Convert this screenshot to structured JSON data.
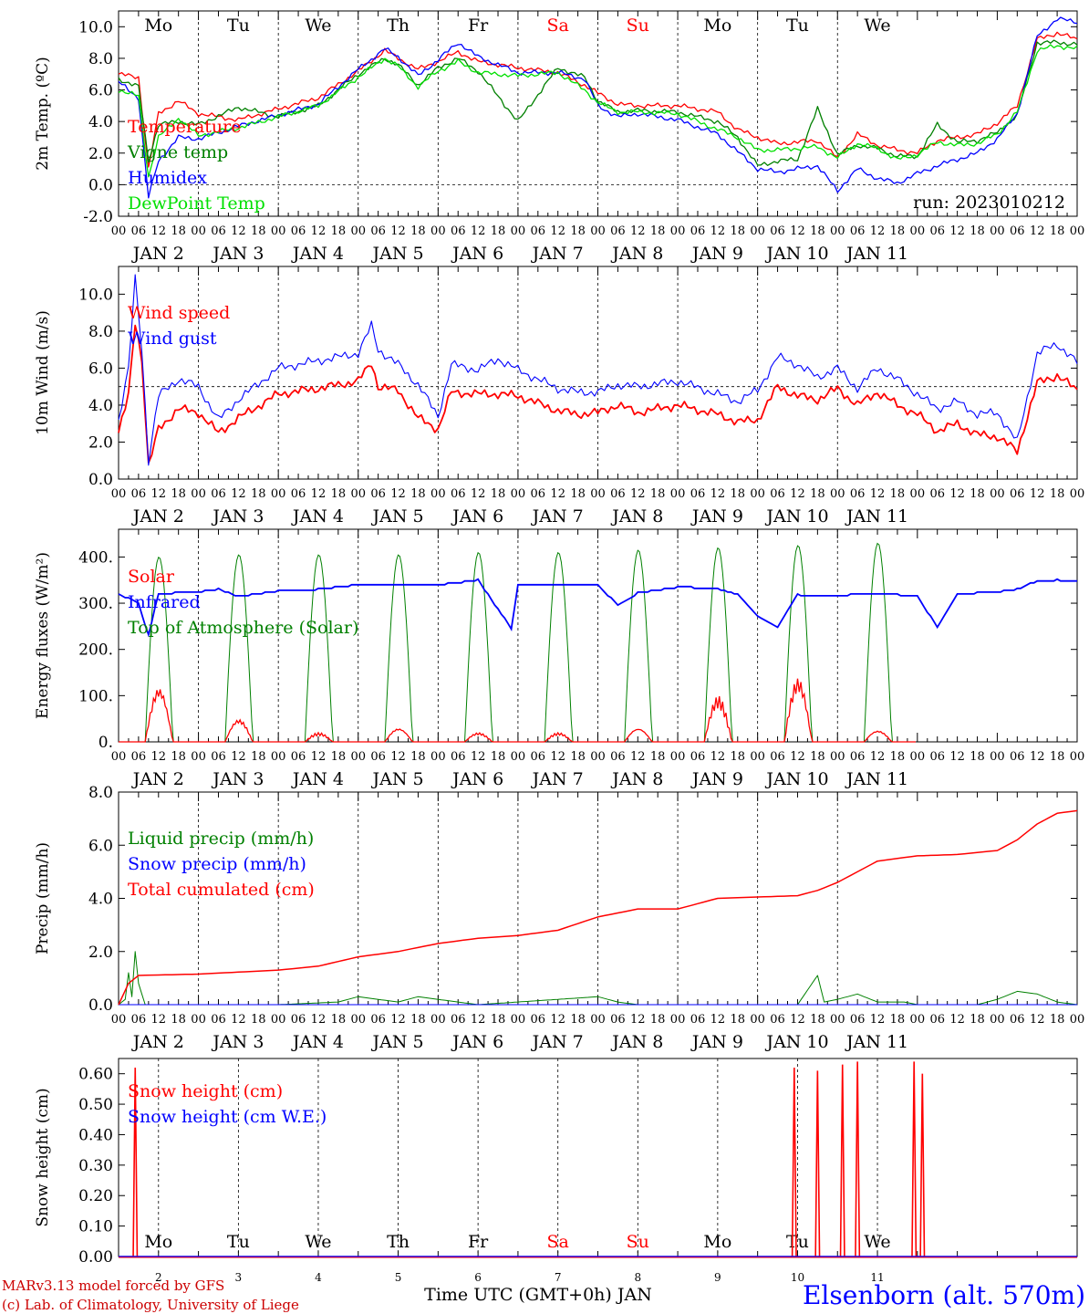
{
  "meta": {
    "run_label": "run: 2023010212",
    "footer_model": "MARv3.13 model forced by GFS",
    "footer_lab": "(c) Lab. of Climatology, University of Liege",
    "time_axis_label": "Time UTC (GMT+0h) JAN",
    "station": "Elsenborn (alt. 570m)"
  },
  "colors": {
    "red": "#ff0000",
    "green": "#008000",
    "blue": "#0000ff",
    "lightgreen": "#00e000",
    "weekend": "#ff0000",
    "station": "#0000ff",
    "footer": "#cc0000"
  },
  "days": [
    {
      "abbr": "Mo",
      "date": "JAN  2",
      "num": "2",
      "weekend": false
    },
    {
      "abbr": "Tu",
      "date": "JAN  3",
      "num": "3",
      "weekend": false
    },
    {
      "abbr": "We",
      "date": "JAN  4",
      "num": "4",
      "weekend": false
    },
    {
      "abbr": "Th",
      "date": "JAN  5",
      "num": "5",
      "weekend": false
    },
    {
      "abbr": "Fr",
      "date": "JAN  6",
      "num": "6",
      "weekend": false
    },
    {
      "abbr": "Sa",
      "date": "JAN  7",
      "num": "7",
      "weekend": true
    },
    {
      "abbr": "Su",
      "date": "JAN  8",
      "num": "8",
      "weekend": true
    },
    {
      "abbr": "Mo",
      "date": "JAN  9",
      "num": "9",
      "weekend": false
    },
    {
      "abbr": "Tu",
      "date": "JAN 10",
      "num": "10",
      "weekend": false
    },
    {
      "abbr": "We",
      "date": "JAN 11",
      "num": "11",
      "weekend": false
    }
  ],
  "hour_ticks": [
    "00",
    "06",
    "12",
    "18"
  ],
  "chart_data": [
    {
      "type": "line",
      "ylabel": "2m Temp. (ºC)",
      "ylim": [
        -2,
        11
      ],
      "yticks": [
        "-2.0",
        "0.0",
        "2.0",
        "4.0",
        "6.0",
        "8.0",
        "10.0"
      ],
      "ytick_values": [
        -2,
        0,
        2,
        4,
        6,
        8,
        10
      ],
      "reference_line": 0,
      "x_unit": "hours since JAN 2 00 UTC",
      "series": [
        {
          "name": "Temperature",
          "color": "#ff0000",
          "x": [
            0,
            6,
            9,
            12,
            18,
            24,
            36,
            48,
            60,
            72,
            80,
            84,
            90,
            96,
            102,
            108,
            120,
            132,
            140,
            144,
            150,
            156,
            168,
            180,
            186,
            192,
            198,
            204,
            210,
            216,
            222,
            228,
            234,
            240,
            246,
            252,
            258,
            264,
            270,
            276,
            282,
            288
          ],
          "y": [
            7.0,
            6.8,
            1.0,
            4.5,
            5.3,
            4.5,
            4.1,
            4.8,
            5.5,
            7.2,
            8.5,
            8.0,
            7.3,
            7.8,
            8.4,
            7.8,
            7.4,
            7.1,
            6.3,
            5.8,
            5.1,
            5.0,
            5.0,
            4.6,
            3.5,
            3.0,
            2.6,
            2.7,
            2.8,
            1.7,
            3.2,
            2.5,
            2.2,
            2.0,
            2.8,
            3.0,
            3.2,
            3.9,
            5.0,
            9.2,
            9.6,
            9.2
          ]
        },
        {
          "name": "Vigne temp",
          "color": "#008000",
          "x": [
            0,
            6,
            9,
            12,
            18,
            24,
            36,
            48,
            60,
            72,
            80,
            84,
            90,
            96,
            102,
            108,
            120,
            132,
            140,
            144,
            150,
            156,
            168,
            180,
            186,
            192,
            198,
            204,
            210,
            216,
            222,
            228,
            234,
            240,
            246,
            252,
            258,
            264,
            270,
            276,
            282,
            288
          ],
          "y": [
            6.7,
            6.2,
            1.5,
            3.8,
            4.0,
            3.8,
            4.9,
            4.3,
            5.0,
            7.0,
            8.0,
            7.6,
            6.3,
            7.4,
            8.0,
            7.2,
            4.0,
            7.4,
            6.8,
            5.3,
            4.6,
            4.7,
            4.6,
            4.0,
            3.0,
            1.2,
            1.5,
            1.6,
            4.8,
            1.9,
            2.5,
            2.3,
            1.8,
            1.8,
            3.8,
            2.7,
            2.8,
            3.3,
            4.4,
            9.0,
            9.0,
            8.9
          ]
        },
        {
          "name": "Humidex",
          "color": "#0000ff",
          "x": [
            0,
            6,
            9,
            12,
            18,
            24,
            36,
            48,
            60,
            72,
            80,
            84,
            90,
            96,
            102,
            108,
            120,
            132,
            140,
            144,
            150,
            156,
            168,
            180,
            186,
            192,
            198,
            204,
            210,
            216,
            222,
            228,
            234,
            240,
            246,
            252,
            258,
            264,
            270,
            276,
            282,
            288
          ],
          "y": [
            6.5,
            5.5,
            -0.8,
            1.5,
            3.0,
            2.9,
            3.7,
            4.4,
            5.1,
            7.3,
            8.6,
            8.1,
            6.9,
            7.9,
            9.0,
            8.1,
            7.1,
            7.1,
            6.7,
            5.0,
            4.3,
            4.5,
            4.1,
            3.2,
            2.1,
            1.0,
            0.8,
            1.0,
            1.2,
            -0.4,
            1.0,
            0.4,
            0.1,
            0.7,
            1.2,
            1.6,
            2.0,
            2.9,
            4.5,
            9.4,
            10.5,
            10.3
          ]
        },
        {
          "name": "DewPoint Temp",
          "color": "#00e000",
          "x": [
            0,
            6,
            9,
            12,
            18,
            24,
            36,
            48,
            60,
            72,
            80,
            84,
            90,
            96,
            102,
            108,
            120,
            132,
            140,
            144,
            150,
            156,
            168,
            180,
            186,
            192,
            198,
            204,
            210,
            216,
            222,
            228,
            234,
            240,
            246,
            252,
            258,
            264,
            270,
            276,
            282,
            288
          ],
          "y": [
            6.0,
            5.6,
            0.5,
            3.0,
            4.2,
            3.1,
            3.6,
            4.3,
            5.0,
            6.8,
            8.0,
            7.5,
            6.2,
            7.2,
            7.8,
            7.1,
            6.9,
            7.1,
            6.0,
            5.2,
            4.6,
            4.6,
            4.5,
            3.5,
            3.0,
            2.2,
            2.2,
            2.3,
            2.4,
            1.7,
            2.6,
            2.3,
            1.6,
            1.9,
            2.7,
            2.5,
            2.6,
            3.2,
            4.6,
            8.5,
            8.8,
            8.6
          ]
        }
      ]
    },
    {
      "type": "line",
      "ylabel": "10m Wind (m/s)",
      "ylim": [
        0,
        11.5
      ],
      "yticks": [
        "0.0",
        "2.0",
        "4.0",
        "6.0",
        "8.0",
        "10.0"
      ],
      "ytick_values": [
        0,
        2,
        4,
        6,
        8,
        10
      ],
      "reference_line": 5,
      "x_unit": "hours since JAN 2 00 UTC",
      "series": [
        {
          "name": "Wind speed",
          "color": "#ff0000",
          "x": [
            0,
            3,
            5,
            7,
            9,
            12,
            18,
            24,
            30,
            36,
            48,
            60,
            72,
            76,
            78,
            84,
            90,
            96,
            100,
            108,
            114,
            120,
            132,
            138,
            144,
            150,
            156,
            168,
            180,
            186,
            192,
            198,
            204,
            210,
            216,
            222,
            228,
            234,
            240,
            246,
            252,
            258,
            264,
            270,
            276,
            282,
            288
          ],
          "y": [
            2.5,
            4.5,
            8.5,
            6.5,
            0.7,
            2.7,
            3.8,
            3.6,
            2.5,
            3.3,
            4.6,
            4.9,
            5.3,
            6.3,
            5.0,
            4.8,
            3.3,
            2.7,
            4.7,
            4.6,
            4.6,
            4.5,
            3.7,
            3.5,
            3.6,
            4.0,
            3.6,
            4.0,
            3.5,
            3.1,
            3.2,
            5.0,
            4.5,
            4.3,
            4.9,
            4.0,
            4.7,
            4.0,
            3.5,
            2.6,
            3.0,
            2.4,
            2.3,
            1.5,
            5.2,
            5.6,
            4.8
          ]
        },
        {
          "name": "Wind gust",
          "color": "#0000ff",
          "x": [
            0,
            3,
            5,
            7,
            9,
            12,
            18,
            24,
            30,
            36,
            48,
            60,
            72,
            76,
            78,
            84,
            90,
            96,
            100,
            108,
            114,
            120,
            132,
            138,
            144,
            150,
            156,
            168,
            180,
            186,
            192,
            198,
            204,
            210,
            216,
            222,
            228,
            234,
            240,
            246,
            252,
            258,
            264,
            270,
            276,
            282,
            288
          ],
          "y": [
            3.2,
            6.0,
            10.8,
            7.0,
            1.0,
            4.5,
            5.4,
            5.0,
            3.2,
            4.3,
            6.0,
            6.4,
            6.8,
            8.3,
            7.0,
            6.2,
            5.1,
            3.4,
            6.2,
            5.9,
            6.5,
            5.9,
            4.9,
            4.7,
            4.7,
            5.1,
            5.0,
            5.3,
            4.6,
            4.2,
            4.8,
            6.6,
            6.2,
            5.5,
            6.0,
            4.9,
            6.0,
            5.4,
            4.6,
            3.8,
            4.2,
            3.5,
            3.6,
            2.0,
            6.8,
            7.3,
            6.3
          ]
        }
      ]
    },
    {
      "type": "line",
      "ylabel": "Energy fluxes (W/m²)",
      "ylim": [
        0,
        460
      ],
      "yticks": [
        "0.",
        "100.",
        "200.",
        "300.",
        "400."
      ],
      "ytick_values": [
        0,
        100,
        200,
        300,
        400
      ],
      "x_unit": "hours since JAN 2 00 UTC",
      "daylight_hours": [
        8.0,
        16.3
      ],
      "series": [
        {
          "name": "Solar",
          "color": "#ff0000",
          "daily_peaks": [
            120,
            50,
            20,
            30,
            20,
            20,
            30,
            100,
            140,
            25
          ]
        },
        {
          "name": "Infrared",
          "color": "#0000ff",
          "x": [
            0,
            6,
            9,
            12,
            24,
            30,
            36,
            48,
            60,
            72,
            84,
            96,
            108,
            118,
            120,
            124,
            126,
            132,
            144,
            150,
            156,
            168,
            180,
            186,
            192,
            198,
            204,
            210,
            216,
            222,
            228,
            234,
            240,
            246,
            252,
            258,
            264,
            270,
            276,
            282,
            288
          ],
          "y": [
            320,
            300,
            230,
            320,
            325,
            330,
            315,
            326,
            330,
            340,
            338,
            340,
            350,
            245,
            340,
            340,
            338,
            340,
            340,
            295,
            322,
            335,
            332,
            318,
            270,
            248,
            318,
            315,
            315,
            320,
            320,
            318,
            315,
            248,
            320,
            322,
            325,
            330,
            348,
            350,
            348
          ]
        },
        {
          "name": "Top of Atmosphere (Solar)",
          "color": "#008000",
          "daily_peaks": [
            400,
            405,
            405,
            405,
            410,
            410,
            415,
            420,
            425,
            430
          ]
        }
      ]
    },
    {
      "type": "line",
      "ylabel": "Precip (mm/h)",
      "ylim": [
        0,
        8
      ],
      "yticks": [
        "0.0",
        "2.0",
        "4.0",
        "6.0",
        "8.0"
      ],
      "ytick_values": [
        0,
        2,
        4,
        6,
        8
      ],
      "x_unit": "hours since JAN 2 00 UTC",
      "series": [
        {
          "name": "Liquid precip (mm/h)",
          "color": "#008000",
          "x": [
            0,
            2,
            3,
            4,
            5,
            6,
            7,
            8,
            24,
            48,
            66,
            72,
            84,
            90,
            96,
            102,
            108,
            120,
            144,
            150,
            156,
            168,
            180,
            192,
            204,
            210,
            212,
            216,
            222,
            228,
            236,
            240,
            258,
            264,
            270,
            276,
            282,
            288
          ],
          "y": [
            0,
            0.2,
            1.2,
            0.3,
            2.0,
            0.8,
            0.4,
            0,
            0,
            0,
            0.1,
            0.3,
            0.1,
            0.3,
            0.2,
            0.1,
            0,
            0.1,
            0.3,
            0.1,
            0,
            0,
            0,
            0,
            0,
            1.1,
            0.1,
            0.2,
            0.4,
            0.1,
            0.1,
            0,
            0,
            0.2,
            0.5,
            0.4,
            0.1,
            0
          ]
        },
        {
          "name": "Snow precip (mm/h)",
          "color": "#0000ff",
          "x": [
            0,
            288
          ],
          "y": [
            0,
            0
          ]
        },
        {
          "name": "Total cumulated (cm)",
          "color": "#ff0000",
          "x": [
            0,
            3,
            6,
            24,
            48,
            60,
            72,
            84,
            96,
            108,
            120,
            132,
            144,
            156,
            168,
            180,
            192,
            204,
            210,
            216,
            222,
            228,
            240,
            252,
            264,
            270,
            276,
            282,
            288
          ],
          "y": [
            0,
            0.8,
            1.1,
            1.15,
            1.3,
            1.45,
            1.8,
            2.0,
            2.3,
            2.5,
            2.6,
            2.8,
            3.3,
            3.6,
            3.6,
            4.0,
            4.05,
            4.1,
            4.3,
            4.6,
            5.0,
            5.4,
            5.6,
            5.65,
            5.8,
            6.2,
            6.8,
            7.2,
            7.3
          ]
        }
      ]
    },
    {
      "type": "line",
      "ylabel": "Snow height (cm)",
      "ylim": [
        0,
        0.65
      ],
      "yticks": [
        "0.00",
        "0.10",
        "0.20",
        "0.30",
        "0.40",
        "0.50",
        "0.60"
      ],
      "ytick_values": [
        0,
        0.1,
        0.2,
        0.3,
        0.4,
        0.5,
        0.6
      ],
      "x_unit": "hours since JAN 2 00 UTC",
      "series": [
        {
          "name": "Snow height (cm)",
          "color": "#ff0000",
          "spikes": [
            {
              "x": 5.0,
              "y": 0.62
            },
            {
              "x": 203.0,
              "y": 0.62
            },
            {
              "x": 210.0,
              "y": 0.61
            },
            {
              "x": 217.5,
              "y": 0.63
            },
            {
              "x": 222.0,
              "y": 0.64
            },
            {
              "x": 239.0,
              "y": 0.64
            },
            {
              "x": 241.5,
              "y": 0.6
            }
          ]
        },
        {
          "name": "Snow height (cm W.E.)",
          "color": "#0000ff",
          "x": [
            0,
            288
          ],
          "y": [
            0,
            0
          ]
        }
      ]
    }
  ]
}
